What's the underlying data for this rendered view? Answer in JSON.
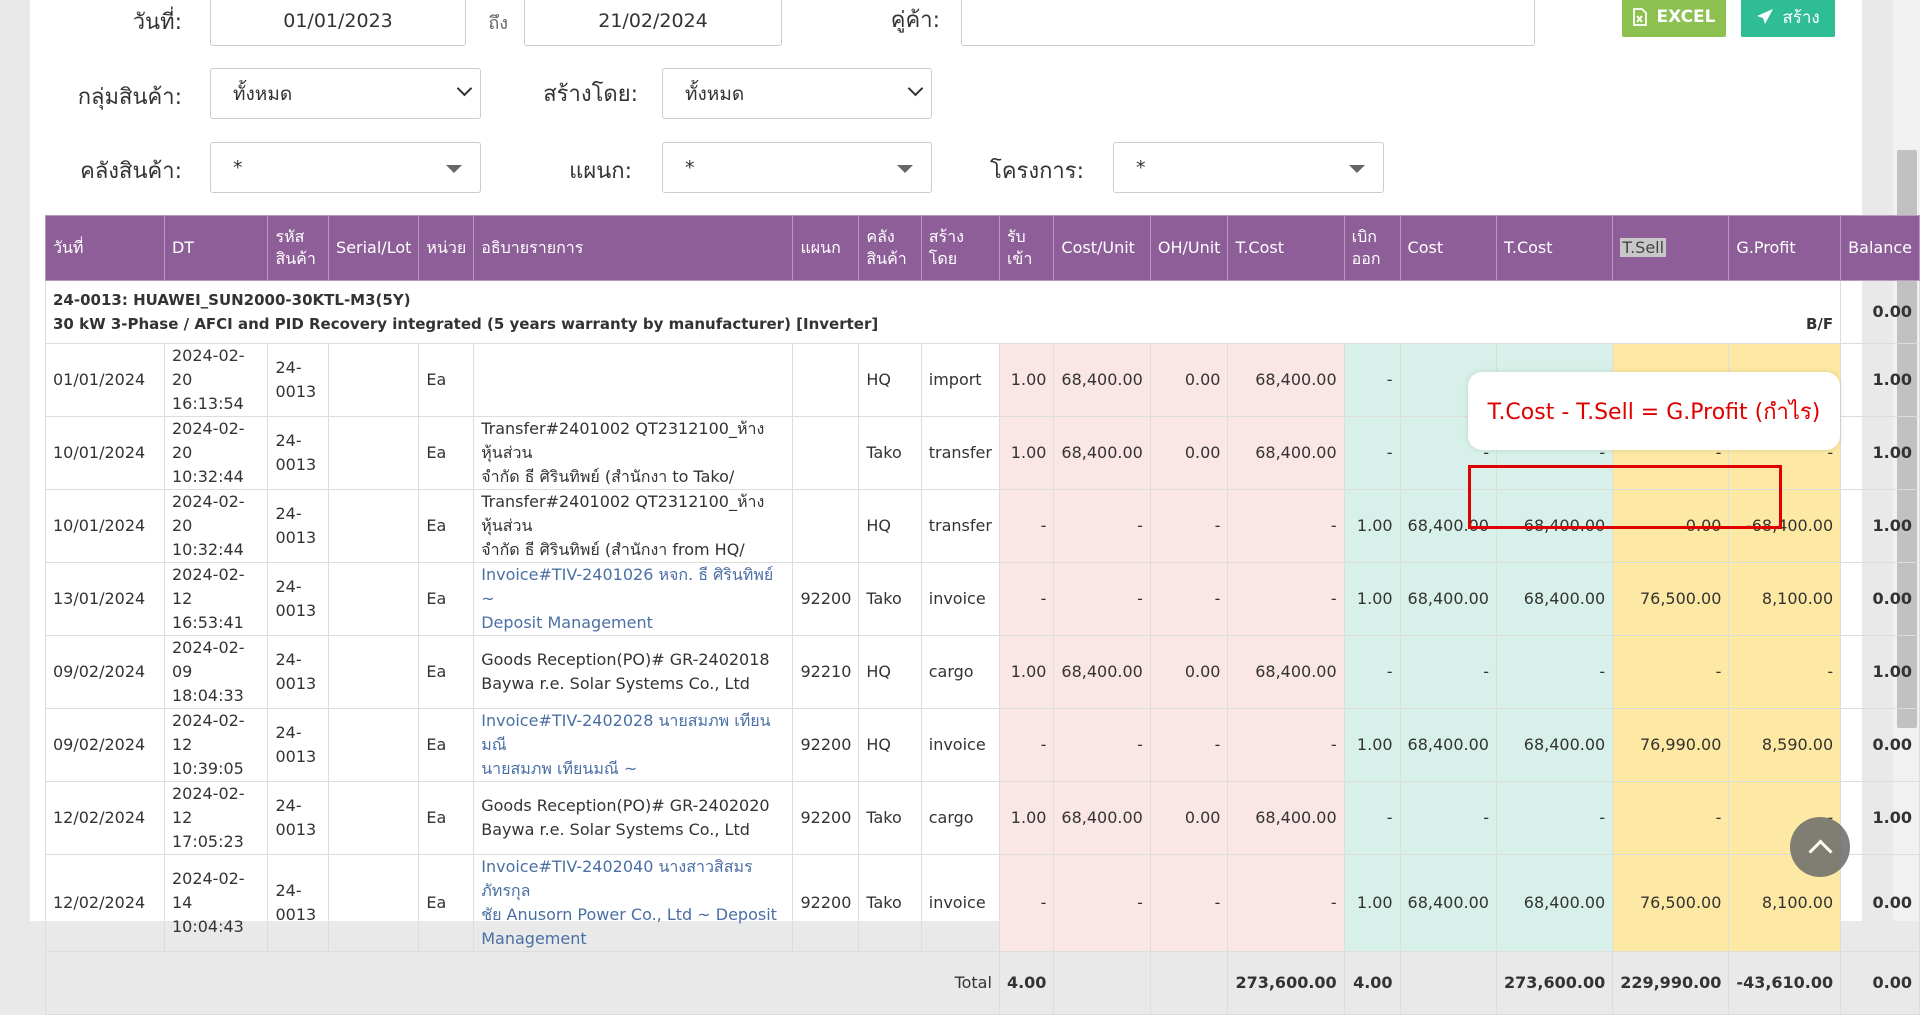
{
  "filters": {
    "date_label": "วันที่:",
    "date_from": "01/01/2023",
    "to_label": "ถึง",
    "date_to": "21/02/2024",
    "partner_label": "คู่ค้า:",
    "partner_value": "",
    "product_group_label": "กลุ่มสินค้า:",
    "product_group_value": "ทั้งหมด",
    "created_by_label": "สร้างโดย:",
    "created_by_value": "ทั้งหมด",
    "warehouse_label": "คลังสินค้า:",
    "warehouse_value": "*",
    "department_label": "แผนก:",
    "department_value": "*",
    "project_label": "โครงการ:",
    "project_value": "*"
  },
  "toolbar": {
    "excel_label": "EXCEL",
    "create_label": "สร้าง"
  },
  "table": {
    "headers": {
      "date": "วันที่",
      "dt": "DT",
      "code1": "รหัส",
      "code2": "สินค้า",
      "serial": "Serial/Lot",
      "unit": "หน่วย",
      "desc": "อธิบายรายการ",
      "dept": "แผนก",
      "wh1": "คลัง",
      "wh2": "สินค้า",
      "by1": "สร้าง",
      "by2": "โดย",
      "in1": "รับ",
      "in2": "เข้า",
      "cost_unit": "Cost/Unit",
      "oh_unit": "OH/Unit",
      "tcost_in": "T.Cost",
      "out1": "เบิก",
      "out2": "ออก",
      "cost": "Cost",
      "tcost_out": "T.Cost",
      "tsell": "T.Sell",
      "gprofit": "G.Profit",
      "balance": "Balance"
    },
    "group": {
      "line1": "24-0013: HUAWEI_SUN2000-30KTL-M3(5Y)",
      "line2": "30 kW 3-Phase / AFCI and PID Recovery integrated (5 years warranty by manufacturer) [Inverter]",
      "bf_label": "B/F",
      "bf_balance": "0.00"
    },
    "rows": [
      {
        "date": "01/01/2024",
        "dt1": "2024-02-",
        "dt2": "20 16:13:54",
        "code1": "24-",
        "code2": "0013",
        "serial": "",
        "unit": "Ea",
        "desc1": "",
        "desc2": "",
        "link": false,
        "dept": "",
        "wh": "HQ",
        "by": "import",
        "in": "1.00",
        "cost_unit": "68,400.00",
        "oh_unit": "0.00",
        "tcost_in": "68,400.00",
        "out": "-",
        "cost": "-",
        "tcost_out": "-",
        "tsell": "-",
        "gprofit": "-",
        "balance": "1.00"
      },
      {
        "date": "10/01/2024",
        "dt1": "2024-02-",
        "dt2": "20 10:32:44",
        "code1": "24-",
        "code2": "0013",
        "serial": "",
        "unit": "Ea",
        "desc1": "Transfer#2401002 QT2312100_ห้างหุ้นส่วน",
        "desc2": "จำกัด ธี ศิรินทิพย์ (สำนักงา to Tako/",
        "link": false,
        "dept": "",
        "wh": "Tako",
        "by": "transfer",
        "in": "1.00",
        "cost_unit": "68,400.00",
        "oh_unit": "0.00",
        "tcost_in": "68,400.00",
        "out": "-",
        "cost": "-",
        "tcost_out": "-",
        "tsell": "-",
        "gprofit": "-",
        "balance": "1.00"
      },
      {
        "date": "10/01/2024",
        "dt1": "2024-02-",
        "dt2": "20 10:32:44",
        "code1": "24-",
        "code2": "0013",
        "serial": "",
        "unit": "Ea",
        "desc1": "Transfer#2401002 QT2312100_ห้างหุ้นส่วน",
        "desc2": "จำกัด ธี ศิรินทิพย์ (สำนักงา from HQ/",
        "link": false,
        "dept": "",
        "wh": "HQ",
        "by": "transfer",
        "in": "-",
        "cost_unit": "-",
        "oh_unit": "-",
        "tcost_in": "-",
        "out": "1.00",
        "cost": "68,400.00",
        "tcost_out": "68,400.00",
        "tsell": "0.00",
        "gprofit": "-68,400.00",
        "balance": "1.00"
      },
      {
        "date": "13/01/2024",
        "dt1": "2024-02-12",
        "dt2": "16:53:41",
        "code1": "24-",
        "code2": "0013",
        "serial": "",
        "unit": "Ea",
        "desc1": "Invoice#TIV-2401026 หจก. ธี ศิรินทิพย์ ~",
        "desc2": "Deposit Management",
        "link": true,
        "dept": "92200",
        "wh": "Tako",
        "by": "invoice",
        "in": "-",
        "cost_unit": "-",
        "oh_unit": "-",
        "tcost_in": "-",
        "out": "1.00",
        "cost": "68,400.00",
        "tcost_out": "68,400.00",
        "tsell": "76,500.00",
        "gprofit": "8,100.00",
        "balance": "0.00"
      },
      {
        "date": "09/02/2024",
        "dt1": "2024-02-",
        "dt2": "09 18:04:33",
        "code1": "24-",
        "code2": "0013",
        "serial": "",
        "unit": "Ea",
        "desc1": "Goods Reception(PO)# GR-2402018",
        "desc2": "Baywa r.e. Solar Systems Co., Ltd",
        "link": false,
        "dept": "92210",
        "wh": "HQ",
        "by": "cargo",
        "in": "1.00",
        "cost_unit": "68,400.00",
        "oh_unit": "0.00",
        "tcost_in": "68,400.00",
        "out": "-",
        "cost": "-",
        "tcost_out": "-",
        "tsell": "-",
        "gprofit": "-",
        "balance": "1.00"
      },
      {
        "date": "09/02/2024",
        "dt1": "2024-02-12",
        "dt2": "10:39:05",
        "code1": "24-",
        "code2": "0013",
        "serial": "",
        "unit": "Ea",
        "desc1": "Invoice#TIV-2402028 นายสมภพ เทียนมณี",
        "desc2": "นายสมภพ เทียนมณี ~",
        "link": true,
        "dept": "92200",
        "wh": "HQ",
        "by": "invoice",
        "in": "-",
        "cost_unit": "-",
        "oh_unit": "-",
        "tcost_in": "-",
        "out": "1.00",
        "cost": "68,400.00",
        "tcost_out": "68,400.00",
        "tsell": "76,990.00",
        "gprofit": "8,590.00",
        "balance": "0.00"
      },
      {
        "date": "12/02/2024",
        "dt1": "2024-02-12",
        "dt2": "17:05:23",
        "code1": "24-",
        "code2": "0013",
        "serial": "",
        "unit": "Ea",
        "desc1": "Goods Reception(PO)# GR-2402020",
        "desc2": "Baywa r.e. Solar Systems Co., Ltd",
        "link": false,
        "dept": "92200",
        "wh": "Tako",
        "by": "cargo",
        "in": "1.00",
        "cost_unit": "68,400.00",
        "oh_unit": "0.00",
        "tcost_in": "68,400.00",
        "out": "-",
        "cost": "-",
        "tcost_out": "-",
        "tsell": "-",
        "gprofit": "-",
        "balance": "1.00"
      },
      {
        "date": "12/02/2024",
        "dt1": "2024-02-14",
        "dt2": "10:04:43",
        "code1": "24-",
        "code2": "0013",
        "serial": "",
        "unit": "Ea",
        "desc1": "Invoice#TIV-2402040 นางสาวสิสมร ภัทรกุล",
        "desc2": "ชัย Anusorn Power Co., Ltd ~ Deposit",
        "desc3": "Management",
        "link": true,
        "dept": "92200",
        "wh": "Tako",
        "by": "invoice",
        "in": "-",
        "cost_unit": "-",
        "oh_unit": "-",
        "tcost_in": "-",
        "out": "1.00",
        "cost": "68,400.00",
        "tcost_out": "68,400.00",
        "tsell": "76,500.00",
        "gprofit": "8,100.00",
        "balance": "0.00"
      }
    ],
    "total": {
      "label": "Total",
      "in": "4.00",
      "tcost_in": "273,600.00",
      "out": "4.00",
      "tcost_out": "273,600.00",
      "tsell": "229,990.00",
      "gprofit": "-43,610.00",
      "balance": "0.00"
    }
  },
  "annotation": {
    "callout_text": "T.Cost - T.Sell = G.Profit (กำไร)",
    "color": "#e00000"
  },
  "colors": {
    "header_bg": "#8e5e98",
    "in_bg": "#fbe6e6",
    "out_bg": "#d7f1ea",
    "sell_bg": "#fde9a3",
    "excel_btn": "#8cc152",
    "create_btn": "#2ebd94"
  },
  "icons": {
    "excel": "file-excel-icon",
    "create": "paper-plane-icon",
    "scroll_top": "chevron-up-icon"
  }
}
